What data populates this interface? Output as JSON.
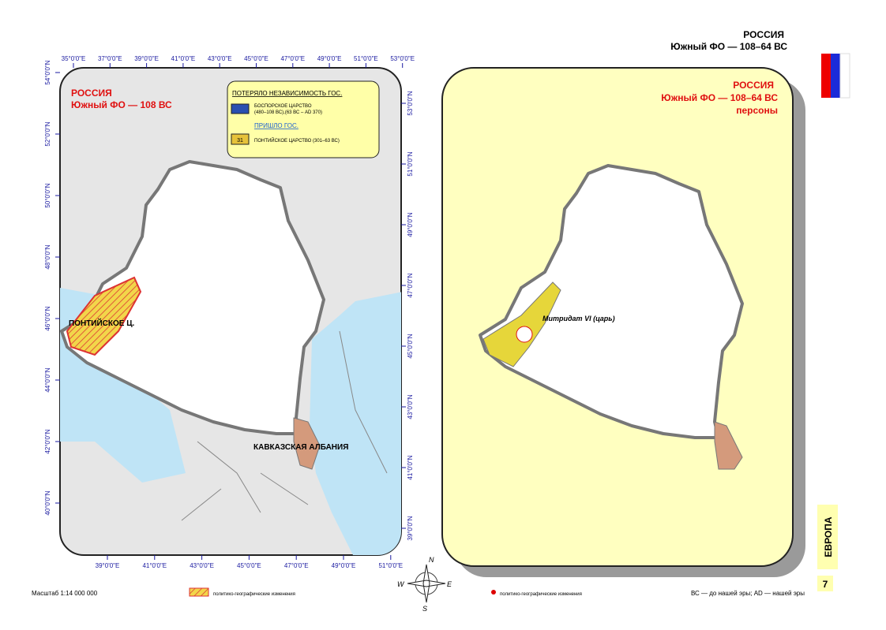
{
  "header": {
    "title": "РОССИЯ",
    "subtitle": "Южный ФО — 108–64 ВС"
  },
  "left_map": {
    "title": "РОССИЯ",
    "subtitle": "Южный ФО — 108 ВС",
    "legend": {
      "lost_heading": "ПОТЕРЯЛО НЕЗАВИСИМОСТЬ ГОС.",
      "lost_name": "БОСПОРСКОЕ ЦАРСТВО",
      "lost_dates": "(480–108 ВС),(63 ВС – AD 370)",
      "came_heading": "ПРИШЛО ГОС.",
      "came_badge": "31",
      "came_name": "ПОНТИЙСКОЕ ЦАРСТВО (301–63 ВС)"
    },
    "labels": [
      "ПОНТИЙСКОЕ Ц.",
      "КАВКАЗСКАЯ АЛБАНИЯ"
    ],
    "ticks": {
      "top": [
        "35°0'0\"E",
        "37°0'0\"E",
        "39°0'0\"E",
        "41°0'0\"E",
        "43°0'0\"E",
        "45°0'0\"E",
        "47°0'0\"E",
        "49°0'0\"E",
        "51°0'0\"E",
        "53°0'0\"E"
      ],
      "bottom": [
        "39°0'0\"E",
        "41°0'0\"E",
        "43°0'0\"E",
        "45°0'0\"E",
        "47°0'0\"E",
        "49°0'0\"E",
        "51°0'0\"E"
      ],
      "left": [
        "54°0'0\"N",
        "52°0'0\"N",
        "50°0'0\"N",
        "48°0'0\"N",
        "46°0'0\"N",
        "44°0'0\"N",
        "42°0'0\"N",
        "40°0'0\"N"
      ],
      "right": [
        "53°0'0\"N",
        "51°0'0\"N",
        "49°0'0\"N",
        "47°0'0\"N",
        "45°0'0\"N",
        "43°0'0\"N",
        "41°0'0\"N",
        "39°0'0\"N"
      ]
    }
  },
  "right_map": {
    "title": "РОССИЯ",
    "subtitle": "Южный ФО — 108–64 ВС",
    "note": "персоны",
    "person": "Митридат VI (царь)"
  },
  "compass": [
    "N",
    "W",
    "E",
    "S"
  ],
  "footer": {
    "scale": "Масштаб 1:14 000 000",
    "legend_changes": "политико-географические изменения",
    "legend_points": "политико-географические изменения",
    "era_note": "ВС — до нашей эры; AD — нашей эры"
  },
  "side_tab": {
    "label": "ЕВРОПА",
    "page": "7"
  }
}
